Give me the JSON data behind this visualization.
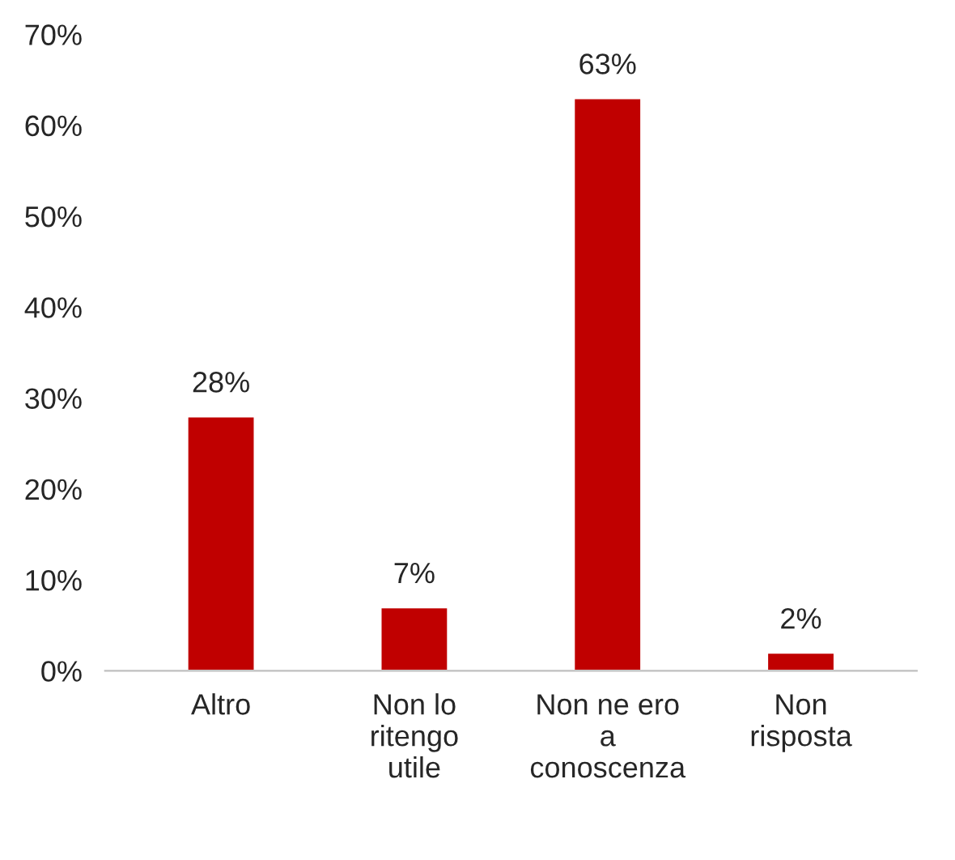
{
  "chart_data": {
    "type": "bar",
    "categories": [
      "Altro",
      "Non lo\nritengo\nutile",
      "Non ne ero\na\nconoscenza",
      "Non\nrisposta"
    ],
    "values": [
      28,
      7,
      63,
      2
    ],
    "value_labels": [
      "28%",
      "7%",
      "63%",
      "2%"
    ],
    "color": "#c00000",
    "ylim": [
      0,
      70
    ],
    "yticks": [
      {
        "value": 0,
        "label": "0%"
      },
      {
        "value": 10,
        "label": "10%"
      },
      {
        "value": 20,
        "label": "20%"
      },
      {
        "value": 30,
        "label": "30%"
      },
      {
        "value": 40,
        "label": "40%"
      },
      {
        "value": 50,
        "label": "50%"
      },
      {
        "value": 60,
        "label": "60%"
      },
      {
        "value": 70,
        "label": "70%"
      }
    ],
    "grid": false,
    "legend": false
  }
}
